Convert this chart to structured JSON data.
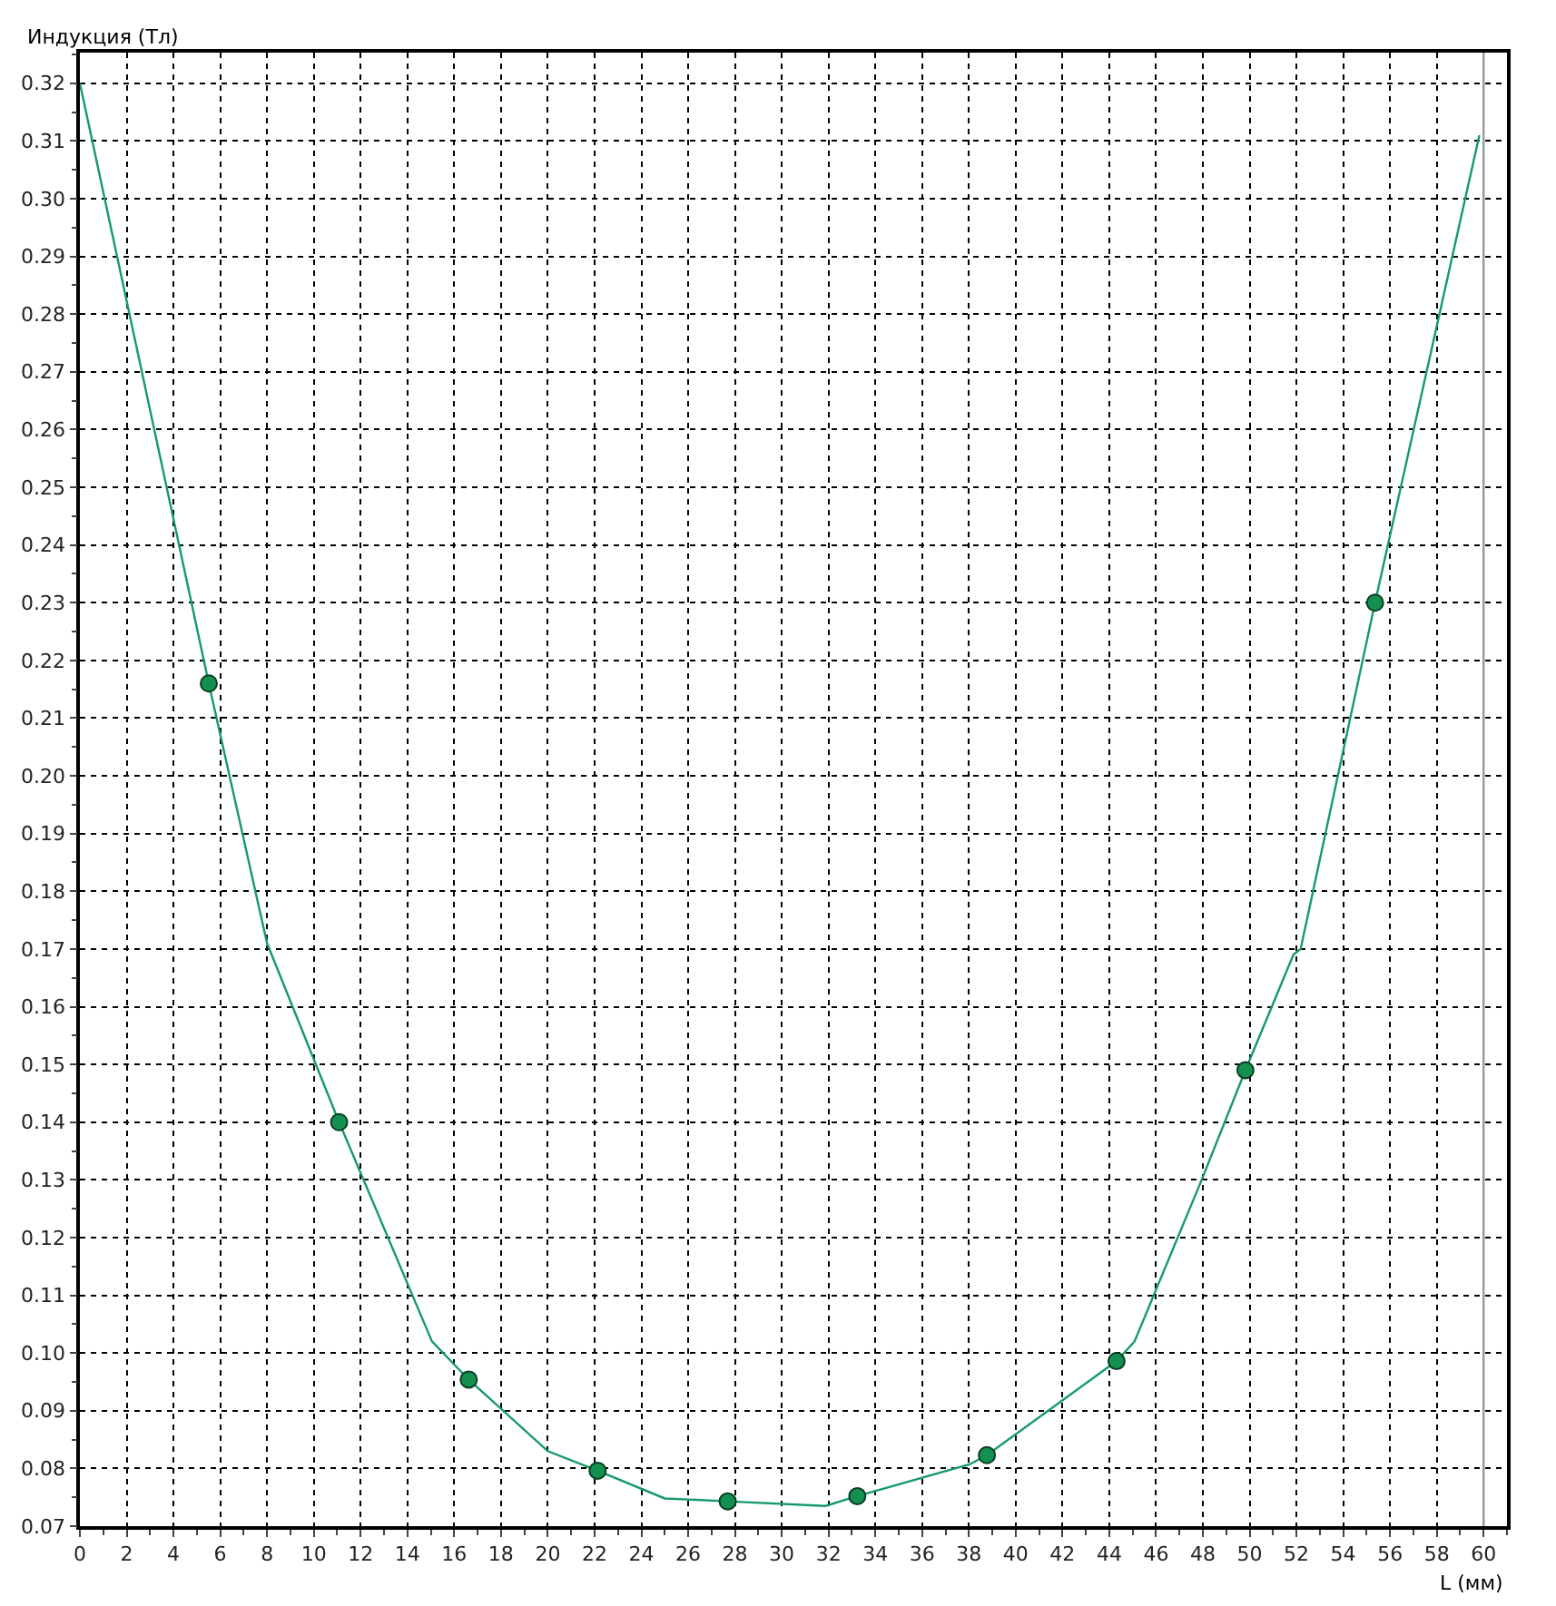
{
  "chart_data": {
    "type": "line",
    "xlabel": "L (мм)",
    "ylabel": "Индукция (Тл)",
    "xlim": [
      0,
      61
    ],
    "ylim": [
      0.07,
      0.3253
    ],
    "xticks": [
      0,
      2,
      4,
      6,
      8,
      10,
      12,
      14,
      16,
      18,
      20,
      22,
      24,
      26,
      28,
      30,
      32,
      34,
      36,
      38,
      40,
      42,
      44,
      46,
      48,
      50,
      52,
      54,
      56,
      58,
      60
    ],
    "yticks": [
      {
        "value": 0.07,
        "label": "0.07"
      },
      {
        "value": 0.08,
        "label": "0.08"
      },
      {
        "value": 0.09,
        "label": "0.09"
      },
      {
        "value": 0.1,
        "label": "0.10"
      },
      {
        "value": 0.11,
        "label": "0.11"
      },
      {
        "value": 0.12,
        "label": "0.12"
      },
      {
        "value": 0.13,
        "label": "0.13"
      },
      {
        "value": 0.14,
        "label": "0.14"
      },
      {
        "value": 0.15,
        "label": "0.15"
      },
      {
        "value": 0.16,
        "label": "0.16"
      },
      {
        "value": 0.17,
        "label": "0.17"
      },
      {
        "value": 0.18,
        "label": "0.18"
      },
      {
        "value": 0.19,
        "label": "0.19"
      },
      {
        "value": 0.2,
        "label": "0.20"
      },
      {
        "value": 0.21,
        "label": "0.21"
      },
      {
        "value": 0.22,
        "label": "0.22"
      },
      {
        "value": 0.23,
        "label": "0.23"
      },
      {
        "value": 0.24,
        "label": "0.24"
      },
      {
        "value": 0.25,
        "label": "0.25"
      },
      {
        "value": 0.26,
        "label": "0.26"
      },
      {
        "value": 0.27,
        "label": "0.27"
      },
      {
        "value": 0.28,
        "label": "0.28"
      },
      {
        "value": 0.29,
        "label": "0.29"
      },
      {
        "value": 0.3,
        "label": "0.30"
      },
      {
        "value": 0.31,
        "label": "0.31"
      },
      {
        "value": 0.32,
        "label": "0.32"
      }
    ],
    "grid": true,
    "series": [
      {
        "marker": "none",
        "line_style": "solid",
        "color": "#159a6a",
        "x": [
          0,
          5.51,
          8.0,
          11.08,
          15.05,
          16.62,
          20.0,
          22.13,
          25.0,
          27.69,
          31.87,
          33.23,
          38.02,
          38.77,
          44.31,
          45.08,
          47.95,
          49.82,
          51.87,
          52.18,
          55.36,
          59.82
        ],
        "values": [
          0.32,
          0.216,
          0.171,
          0.14,
          0.102,
          0.0954,
          0.083,
          0.0796,
          0.0748,
          0.0743,
          0.0735,
          0.0752,
          0.0807,
          0.0823,
          0.0986,
          0.102,
          0.13,
          0.149,
          0.169,
          0.17,
          0.23,
          0.311
        ]
      },
      {
        "type": "scatter",
        "marker": "circle",
        "color": "#139050",
        "x": [
          5.51,
          11.08,
          16.62,
          22.13,
          27.69,
          33.23,
          38.77,
          44.31,
          49.82,
          55.36
        ],
        "values": [
          0.216,
          0.14,
          0.0954,
          0.0796,
          0.0743,
          0.0752,
          0.0823,
          0.0986,
          0.149,
          0.23
        ]
      }
    ],
    "ref_lines": [
      {
        "axis": "x",
        "value": 60,
        "color": "#999999",
        "line_style": "solid"
      }
    ]
  }
}
